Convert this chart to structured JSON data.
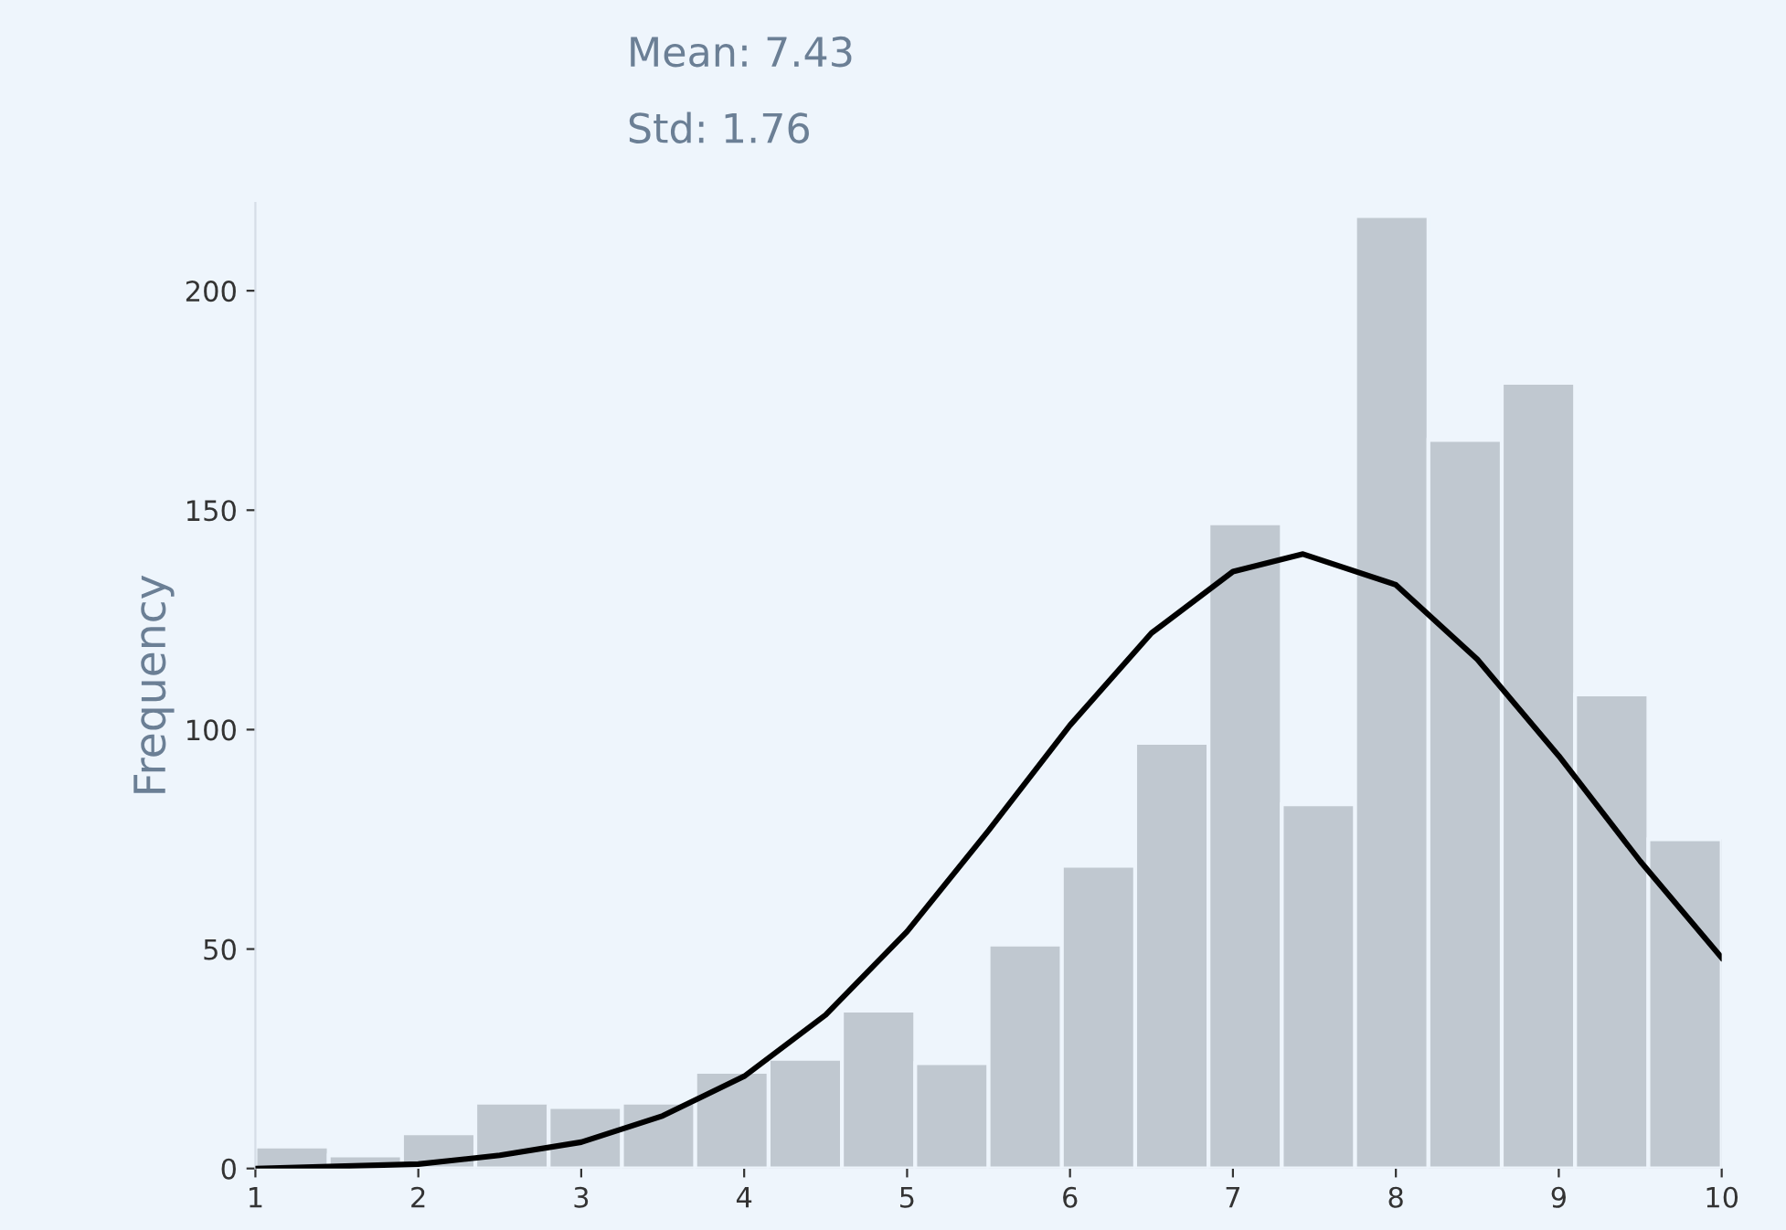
{
  "chart_data": {
    "type": "histogram",
    "ylabel": "Frequency",
    "annotations": [
      "Mean: 7.43",
      "Std: 1.76"
    ],
    "bins": [
      1,
      1.45,
      1.9,
      2.35,
      2.8,
      3.25,
      3.7,
      4.15,
      4.6,
      5.05,
      5.5,
      5.95,
      6.4,
      6.85,
      7.3,
      7.75,
      8.2,
      8.65,
      9.1,
      9.55,
      10
    ],
    "values": [
      5,
      3,
      8,
      15,
      14,
      15,
      22,
      25,
      36,
      24,
      51,
      69,
      97,
      147,
      83,
      217,
      166,
      179,
      108,
      75
    ],
    "color": "#c0c8d0",
    "series": [
      {
        "type": "line",
        "color": "#000000",
        "x": [
          1,
          1.5,
          2,
          2.5,
          3,
          3.5,
          4,
          4.5,
          5,
          5.5,
          6,
          6.5,
          7,
          7.43,
          8,
          8.5,
          9,
          9.5,
          10
        ],
        "values": [
          0,
          0.5,
          1,
          3,
          6,
          12,
          21,
          35,
          54,
          77,
          101,
          122,
          136,
          140,
          133,
          116,
          94,
          70,
          48
        ]
      }
    ],
    "xlim": [
      1,
      10
    ],
    "xticks": [
      1,
      2,
      3,
      4,
      5,
      6,
      7,
      8,
      9,
      10
    ],
    "ylim": [
      0,
      220
    ],
    "yticks": [
      0,
      50,
      100,
      150,
      200
    ],
    "grid": false
  }
}
